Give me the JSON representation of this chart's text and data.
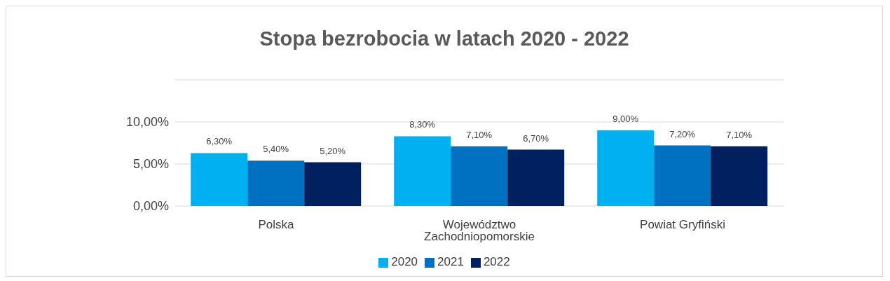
{
  "chart_data": {
    "type": "bar",
    "title": "Stopa bezrobocia w latach 2020 - 2022",
    "categories": [
      "Polska",
      "Województwo Zachodniopomorskie",
      "Powiat Gryfiński"
    ],
    "series": [
      {
        "name": "2020",
        "color": "#00b0f0",
        "values": [
          6.3,
          8.3,
          9.0
        ],
        "value_labels": [
          "6,30%",
          "8,30%",
          "9,00%"
        ]
      },
      {
        "name": "2021",
        "color": "#0070c0",
        "values": [
          5.4,
          7.1,
          7.2
        ],
        "value_labels": [
          "5,40%",
          "7,10%",
          "7,20%"
        ]
      },
      {
        "name": "2022",
        "color": "#002060",
        "values": [
          5.2,
          6.7,
          7.1
        ],
        "value_labels": [
          "5,20%",
          "6,70%",
          "7,10%"
        ]
      }
    ],
    "ylim": [
      0,
      15
    ],
    "yticks": [
      {
        "value": 0,
        "label": "0,00%"
      },
      {
        "value": 5,
        "label": "5,00%"
      },
      {
        "value": 10,
        "label": "10,00%"
      },
      {
        "value": 15,
        "label": null
      }
    ],
    "grid": "y",
    "legend": "bottom"
  }
}
